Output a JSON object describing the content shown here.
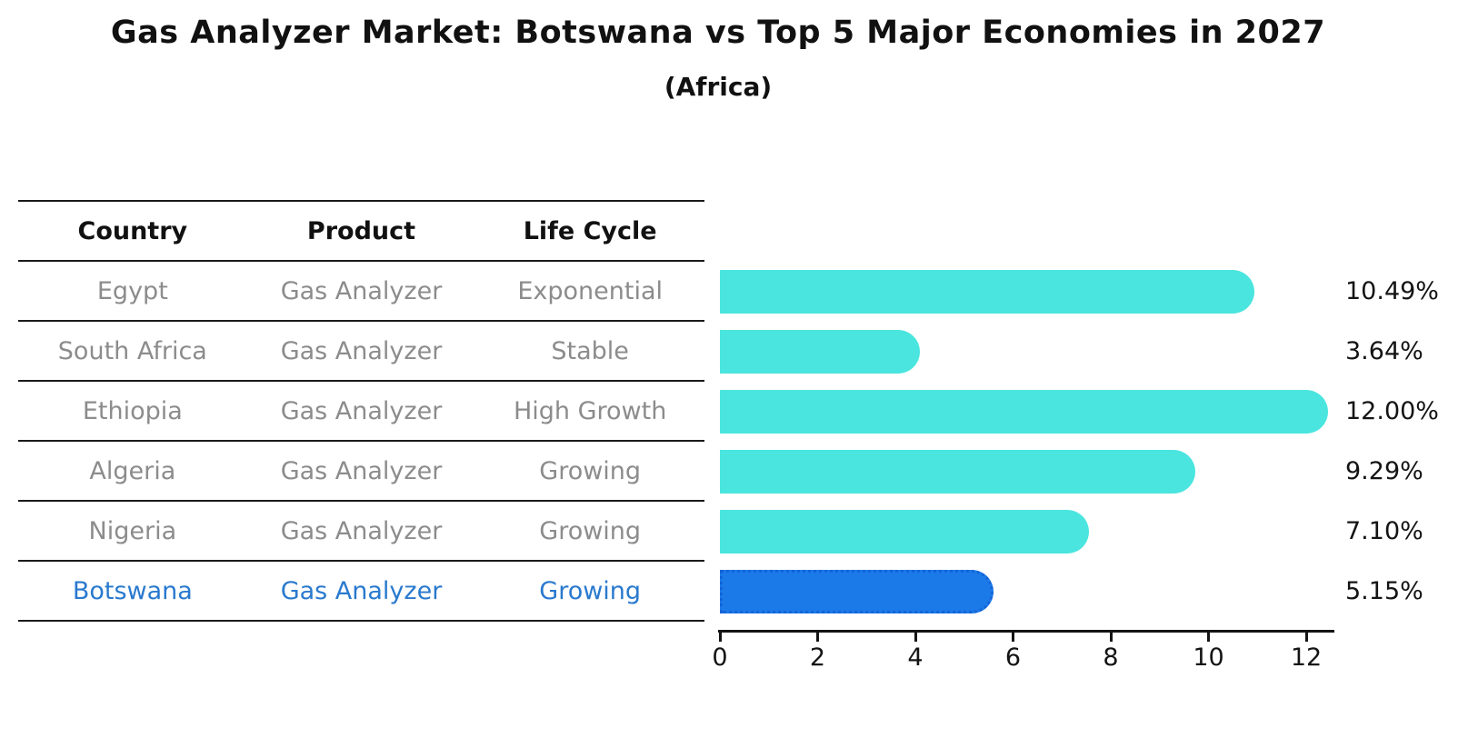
{
  "title": "Gas Analyzer Market: Botswana vs Top 5 Major Economies in 2027",
  "subtitle": "(Africa)",
  "table": {
    "headers": [
      "Country",
      "Product",
      "Life Cycle"
    ],
    "rows": [
      {
        "country": "Egypt",
        "product": "Gas Analyzer",
        "life_cycle": "Exponential",
        "highlight": false
      },
      {
        "country": "South Africa",
        "product": "Gas Analyzer",
        "life_cycle": "Stable",
        "highlight": false
      },
      {
        "country": "Ethiopia",
        "product": "Gas Analyzer",
        "life_cycle": "High Growth",
        "highlight": false
      },
      {
        "country": "Algeria",
        "product": "Gas Analyzer",
        "life_cycle": "Growing",
        "highlight": false
      },
      {
        "country": "Nigeria",
        "product": "Gas Analyzer",
        "life_cycle": "Growing",
        "highlight": true
      },
      {
        "country": "Botswana",
        "product": "Gas Analyzer",
        "life_cycle": "Growing",
        "highlight": true
      }
    ]
  },
  "chart_data": {
    "type": "bar",
    "orientation": "horizontal",
    "title": "Gas Analyzer Market: Botswana vs Top 5 Major Economies in 2027",
    "subtitle": "(Africa)",
    "categories": [
      "Egypt",
      "South Africa",
      "Ethiopia",
      "Algeria",
      "Nigeria",
      "Botswana"
    ],
    "values": [
      10.49,
      3.64,
      12.0,
      9.29,
      7.1,
      5.15
    ],
    "value_labels": [
      "10.49%",
      "3.64%",
      "12.00%",
      "9.29%",
      "7.10%",
      "5.15%"
    ],
    "xticks": [
      0,
      2,
      4,
      6,
      8,
      10,
      12
    ],
    "xlim": [
      0,
      12.6
    ],
    "grid": false,
    "legend": false,
    "bar_color": "#4ae5df",
    "highlight_color": "#1b7ae8",
    "highlight_border_color": "#1465d8",
    "highlight_index": 5,
    "highlight_text_color": "#2979ce"
  }
}
